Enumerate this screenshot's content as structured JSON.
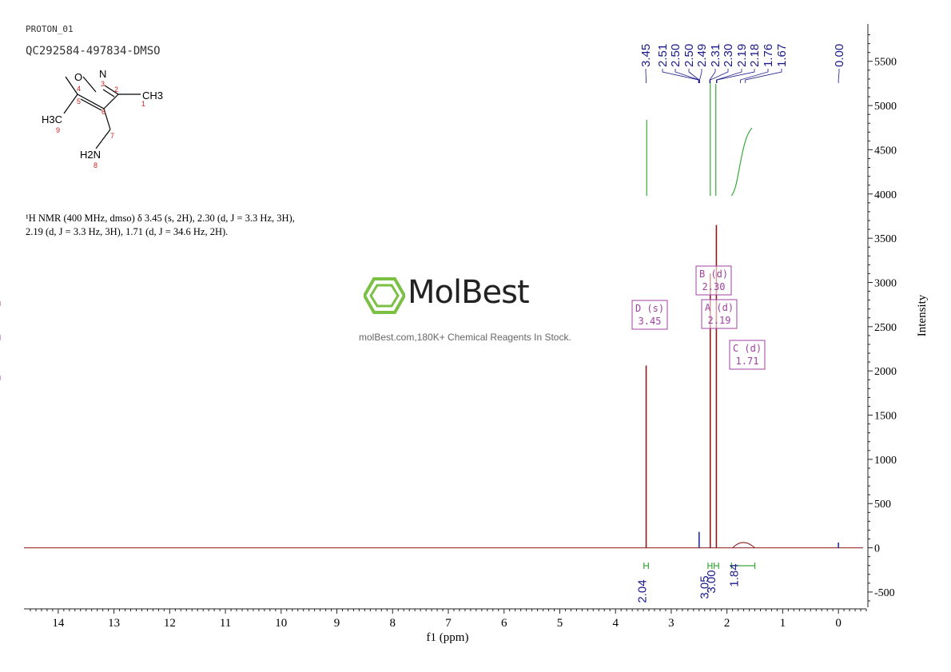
{
  "header": {
    "experiment": "PROTON_01",
    "sample_id": "QC292584-497834-DMSO"
  },
  "structure": {
    "atoms": [
      "O",
      "N",
      "CH3",
      "H3C",
      "H2N"
    ],
    "numbers": [
      "1",
      "2",
      "3",
      "4",
      "5",
      "6",
      "7",
      "8",
      "9"
    ]
  },
  "nmr_report": {
    "line1": "¹H NMR (400 MHz, dmso) δ 3.45 (s, 2H), 2.30 (d, J = 3.3 Hz, 3H),",
    "line2": "2.19 (d, J = 3.3 Hz, 3H), 1.71 (d, J = 34.6 Hz, 2H)."
  },
  "watermark": {
    "brand": "MolBest",
    "tagline": "molBest.com,180K+ Chemical Reagents In Stock."
  },
  "colors": {
    "spectrum": "#8b1a1a",
    "integral": "#3aa83a",
    "peak_label": "#1a1a8a",
    "multiplet": "#a040a0",
    "axis": "#222222"
  },
  "chart_data": {
    "type": "line",
    "xlabel": "f1 (ppm)",
    "ylabel": "Intensity",
    "xlim": [
      14.5,
      -0.5
    ],
    "ylim": [
      -600,
      5850
    ],
    "x_ticks": [
      "14",
      "13",
      "12",
      "11",
      "10",
      "9",
      "8",
      "7",
      "6",
      "5",
      "4",
      "3",
      "2",
      "1",
      "0"
    ],
    "y_ticks": [
      "-500",
      "0",
      "500",
      "1000",
      "1500",
      "2000",
      "2500",
      "3000",
      "3500",
      "4000",
      "4500",
      "5000",
      "5500"
    ],
    "peaks": [
      {
        "ppm": 3.45,
        "height": 2060
      },
      {
        "ppm": 2.5,
        "height": 180
      },
      {
        "ppm": 2.3,
        "height": 3100
      },
      {
        "ppm": 2.19,
        "height": 3650
      },
      {
        "ppm": 1.71,
        "height": 60
      },
      {
        "ppm": 0.0,
        "height": 60
      }
    ],
    "peak_labels": [
      "3.45",
      "2.51",
      "2.50",
      "2.50",
      "2.49",
      "2.31",
      "2.30",
      "2.19",
      "2.18",
      "1.76",
      "1.67",
      "0.00"
    ],
    "integrals": [
      {
        "label": "2.04",
        "from": 3.49,
        "to": 3.41
      },
      {
        "label": "3.05",
        "from": 2.34,
        "to": 2.27
      },
      {
        "label": "3.00",
        "from": 2.23,
        "to": 2.15
      },
      {
        "label": "1.84",
        "from": 1.92,
        "to": 1.5
      }
    ],
    "multiplets": [
      {
        "letter": "D (s)",
        "shift": "3.45"
      },
      {
        "letter": "B (d)",
        "shift": "2.30"
      },
      {
        "letter": "A (d)",
        "shift": "2.19"
      },
      {
        "letter": "C (d)",
        "shift": "1.71"
      }
    ]
  }
}
